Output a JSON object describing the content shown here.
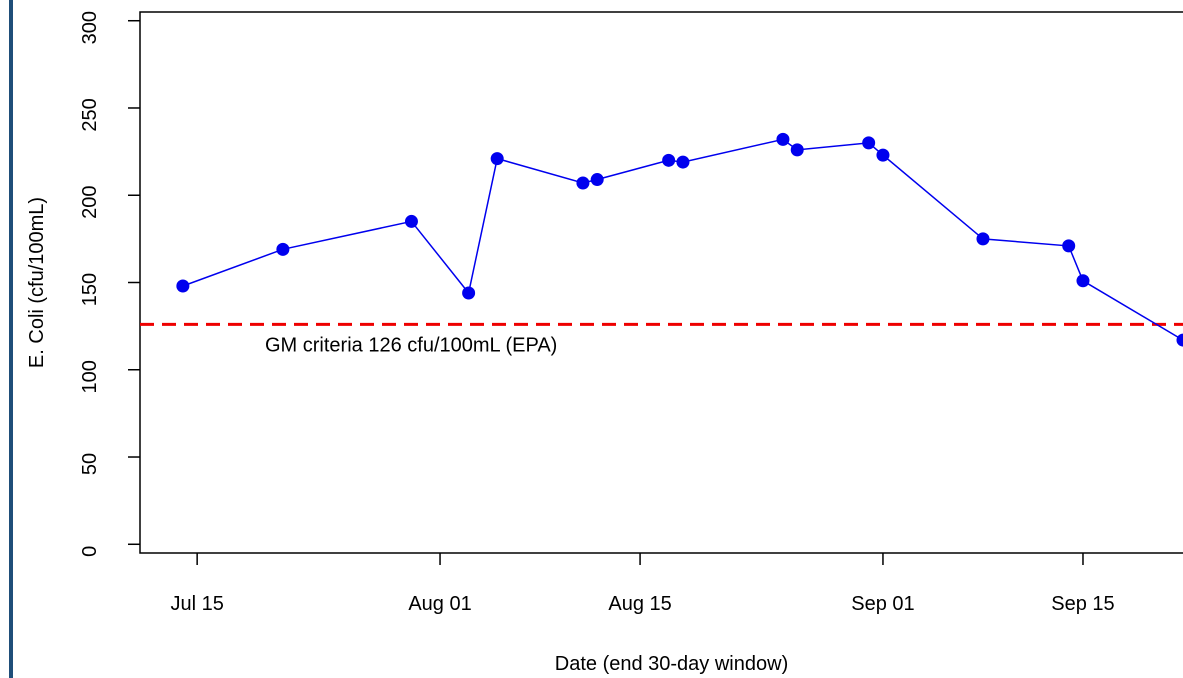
{
  "chart_data": {
    "type": "line",
    "title": "",
    "xlabel": "Date (end 30-day window)",
    "ylabel": "E. Coli (cfu/100mL)",
    "x_ticks": [
      {
        "date": "2023-07-15",
        "label": "Jul 15"
      },
      {
        "date": "2023-08-01",
        "label": "Aug 01"
      },
      {
        "date": "2023-08-15",
        "label": "Aug 15"
      },
      {
        "date": "2023-09-01",
        "label": "Sep 01"
      },
      {
        "date": "2023-09-15",
        "label": "Sep 15"
      }
    ],
    "y_ticks": [
      0,
      50,
      100,
      150,
      200,
      250,
      300
    ],
    "ylim": [
      -5,
      305
    ],
    "xlim": [
      "2023-07-11",
      "2023-09-22"
    ],
    "grid": false,
    "series": [
      {
        "color": "#0000ee",
        "x": [
          "2023-07-14",
          "2023-07-21",
          "2023-07-30",
          "2023-08-03",
          "2023-08-05",
          "2023-08-11",
          "2023-08-12",
          "2023-08-17",
          "2023-08-18",
          "2023-08-25",
          "2023-08-26",
          "2023-08-31",
          "2023-09-01",
          "2023-09-08",
          "2023-09-14",
          "2023-09-15",
          "2023-09-22"
        ],
        "y": [
          148,
          169,
          185,
          144,
          221,
          207,
          209,
          220,
          219,
          232,
          226,
          230,
          223,
          175,
          171,
          151,
          117
        ]
      }
    ],
    "reference_line": {
      "y": 126,
      "color": "#ee0000",
      "style": "dashed",
      "label": "GM criteria 126 cfu/100mL (EPA)"
    }
  }
}
